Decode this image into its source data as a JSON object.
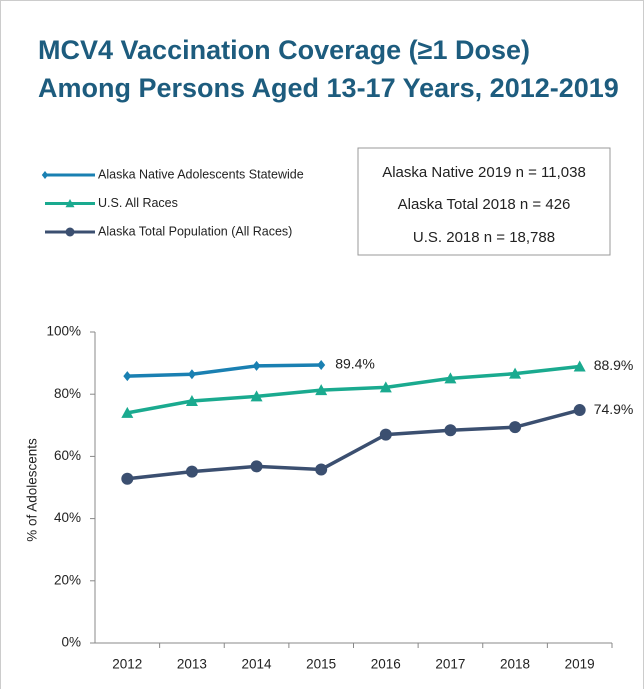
{
  "chart_data": {
    "type": "line",
    "title": [
      "MCV4 Vaccination Coverage (≥1 Dose)",
      "Among Persons Aged 13-17 Years, 2012-2019"
    ],
    "info_box": [
      "Alaska Native 2019 n = 11,038",
      "Alaska Total 2018 n = 426",
      "U.S. 2018 n = 18,788"
    ],
    "y_label": "% of Adolescents",
    "categories": [
      "2012",
      "2013",
      "2014",
      "2015",
      "2016",
      "2017",
      "2018",
      "2019"
    ],
    "series": [
      {
        "name": "Alaska Native Adolescents Statewide",
        "color": "#1a80b2",
        "marker": "diamond",
        "values": [
          85.8,
          86.4,
          89.1,
          89.4,
          null,
          null,
          null,
          null
        ],
        "value_labels": [
          null,
          null,
          null,
          "89.4%",
          null,
          null,
          null,
          null
        ]
      },
      {
        "name": "U.S. All Races",
        "color": "#1aaa8f",
        "marker": "triangle",
        "values": [
          74.0,
          77.8,
          79.3,
          81.3,
          82.2,
          85.1,
          86.6,
          88.9
        ],
        "value_labels": [
          null,
          null,
          null,
          null,
          null,
          null,
          null,
          "88.9%"
        ]
      },
      {
        "name": "Alaska Total Population (All Races)",
        "color": "#3b4f70",
        "marker": "circle",
        "values": [
          52.8,
          55.1,
          56.8,
          55.8,
          67.0,
          68.4,
          69.4,
          74.9
        ],
        "value_labels": [
          null,
          null,
          null,
          null,
          null,
          null,
          null,
          "74.9%"
        ]
      }
    ],
    "ylim": [
      0,
      100
    ],
    "yticks": [
      {
        "value": 0,
        "label": "0%"
      },
      {
        "value": 20,
        "label": "20%"
      },
      {
        "value": 40,
        "label": "40%"
      },
      {
        "value": 60,
        "label": "60%"
      },
      {
        "value": 80,
        "label": "80%"
      },
      {
        "value": 100,
        "label": "100%"
      }
    ],
    "grid": false
  }
}
